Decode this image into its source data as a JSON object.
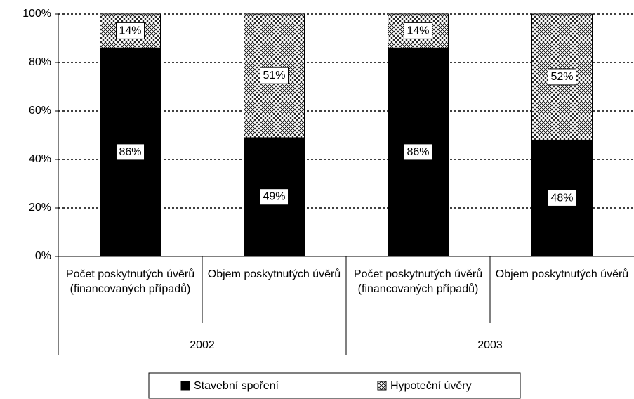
{
  "chart_data": {
    "type": "stacked_bar",
    "categories": [
      "Počet poskytnutých úvěrů (financovaných případů)",
      "Objem poskytnutých úvěrů",
      "Počet poskytnutých úvěrů (financovaných případů)",
      "Objem poskytnutých úvěrů"
    ],
    "groups": [
      {
        "label": "2002",
        "span": 2
      },
      {
        "label": "2003",
        "span": 2
      }
    ],
    "series": [
      {
        "name": "Stavební spoření",
        "color": "#000000",
        "values": [
          86,
          49,
          86,
          48
        ],
        "value_labels": [
          "86%",
          "49%",
          "86%",
          "48%"
        ]
      },
      {
        "name": "Hypoteční úvěry",
        "color": "crosshatch",
        "values": [
          14,
          51,
          14,
          52
        ],
        "value_labels": [
          "14%",
          "51%",
          "14%",
          "52%"
        ]
      }
    ],
    "ylim": [
      0,
      100
    ],
    "yticks": [
      {
        "value": 0,
        "label": "0%"
      },
      {
        "value": 20,
        "label": "20%"
      },
      {
        "value": 40,
        "label": "40%"
      },
      {
        "value": 60,
        "label": "60%"
      },
      {
        "value": 80,
        "label": "80%"
      },
      {
        "value": 100,
        "label": "100%"
      }
    ],
    "grid": true,
    "legend": "bottom"
  }
}
